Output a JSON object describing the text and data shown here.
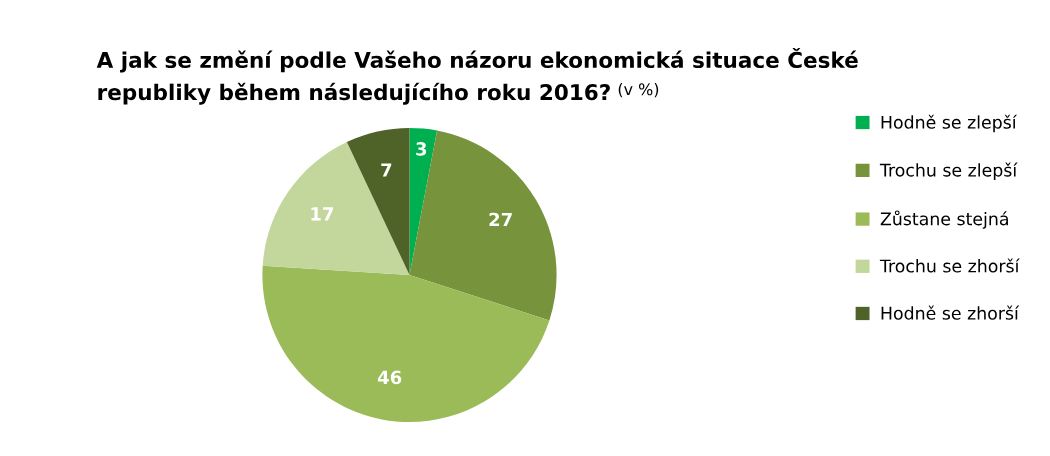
{
  "chart_data": {
    "type": "pie",
    "title": "A jak se změní podle Vašeho názoru ekonomická situace České\nrepubliky během následujícího roku 2016?",
    "subtitle": "(v %)",
    "categories": [
      "Hodně se zlepší",
      "Trochu se zlepší",
      "Zůstane stejná",
      "Trochu se zhorší",
      "Hodně se zhorší"
    ],
    "values": [
      3,
      27,
      46,
      17,
      7
    ],
    "colors": [
      "#00b050",
      "#77933c",
      "#9bbb59",
      "#c3d69b",
      "#4f6228"
    ],
    "data_labels": true,
    "legend": "right"
  }
}
